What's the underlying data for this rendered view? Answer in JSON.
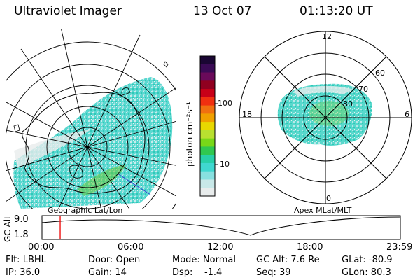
{
  "header": {
    "instrument": "Ultraviolet Imager",
    "date": "13 Oct 07",
    "time": "01:13:20 UT"
  },
  "colorbar": {
    "unit_label": "photon cm⁻²s⁻¹",
    "ticks": [
      "100",
      "10"
    ],
    "colors": [
      "#1a0633",
      "#3a0a55",
      "#6a0a5a",
      "#900020",
      "#c80018",
      "#f03010",
      "#f07010",
      "#f0a000",
      "#e8d800",
      "#b8e030",
      "#78d818",
      "#30c850",
      "#28d0a8",
      "#40d8d0",
      "#88e0e0",
      "#c8e8e8",
      "#e8ecec"
    ]
  },
  "left_map": {
    "caption": "Geographic Lat/Lon"
  },
  "right_map": {
    "caption": "Apex MLat/MLT",
    "mlt_labels": {
      "top": "12",
      "left": "18",
      "right": "6",
      "bottom": "0"
    },
    "lat_labels": [
      "60",
      "70",
      "80"
    ]
  },
  "altitude_plot": {
    "ylabel": "GC Alt",
    "yticks": [
      "9.0",
      "1.8"
    ],
    "xticks": [
      "00:00",
      "06:00",
      "12:00",
      "18:00",
      "23:59"
    ],
    "current_time_marker_hours": 1.22
  },
  "status": {
    "flt": "Flt: LBHL",
    "ip": "IP: 36.0",
    "door": "Door: Open",
    "gain": "Gain: 14",
    "mode": "Mode: Normal",
    "dsp": "Dsp:    -1.4",
    "gc_alt": "GC Alt: 7.6 Re",
    "seq": "Seq: 39",
    "glat": "GLat: -80.9",
    "glon": "GLon: 80.3"
  }
}
